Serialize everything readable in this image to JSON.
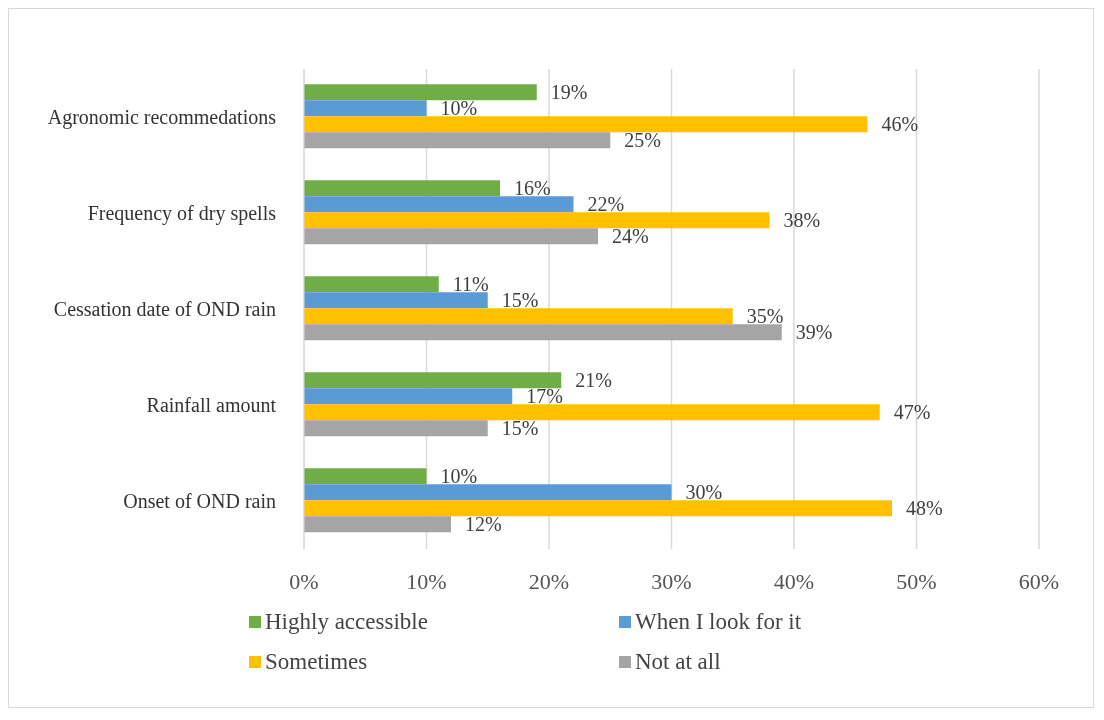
{
  "chart_data": {
    "type": "bar",
    "orientation": "horizontal",
    "categories": [
      "Agronomic recommedations",
      "Frequency of dry spells",
      "Cessation date of  OND rain",
      "Rainfall amount",
      "Onset of  OND rain"
    ],
    "series": [
      {
        "name": "Highly accessible",
        "color": "#70ad47",
        "values": [
          19,
          16,
          11,
          21,
          10
        ],
        "value_labels": [
          "19%",
          "16%",
          "11%",
          "21%",
          "10%"
        ]
      },
      {
        "name": "When I look for it",
        "color": "#5b9bd5",
        "values": [
          10,
          22,
          15,
          17,
          30
        ],
        "value_labels": [
          "10%",
          "22%",
          "15%",
          "17%",
          "30%"
        ]
      },
      {
        "name": "Sometimes",
        "color": "#ffc000",
        "values": [
          46,
          38,
          35,
          47,
          48
        ],
        "value_labels": [
          "46%",
          "38%",
          "35%",
          "47%",
          "48%"
        ]
      },
      {
        "name": "Not at all",
        "color": "#a5a5a5",
        "values": [
          25,
          24,
          39,
          15,
          12
        ],
        "value_labels": [
          "25%",
          "24%",
          "39%",
          "15%",
          "12%"
        ]
      }
    ],
    "xlim": [
      0,
      60
    ],
    "xticks": [
      {
        "value": 0,
        "label": "0%"
      },
      {
        "value": 10,
        "label": "10%"
      },
      {
        "value": 20,
        "label": "20%"
      },
      {
        "value": 30,
        "label": "30%"
      },
      {
        "value": 40,
        "label": "40%"
      },
      {
        "value": 50,
        "label": "50%"
      },
      {
        "value": 60,
        "label": "60%"
      }
    ],
    "grid": "x",
    "legend": "bottom"
  }
}
